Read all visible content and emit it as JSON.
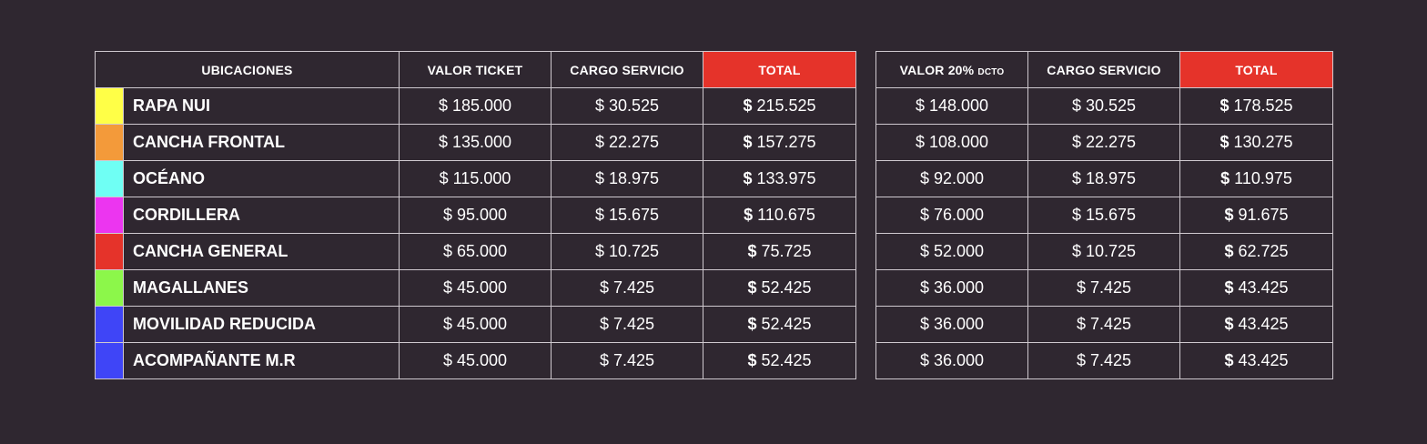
{
  "main_table": {
    "headers": {
      "ubicaciones": "UBICACIONES",
      "valor_ticket": "VALOR TICKET",
      "cargo_servicio": "CARGO SERVICIO",
      "total": "TOTAL"
    },
    "rows": [
      {
        "color": "#ffff47",
        "name": "RAPA NUI",
        "valor": "$ 185.000",
        "cargo": "$ 30.525",
        "total_symbol": "$",
        "total": "215.525"
      },
      {
        "color": "#f39a3a",
        "name": "CANCHA FRONTAL",
        "valor": "$ 135.000",
        "cargo": "$ 22.275",
        "total_symbol": "$",
        "total": "157.275"
      },
      {
        "color": "#6ffff4",
        "name": "OCÉANO",
        "valor": "$ 115.000",
        "cargo": "$ 18.975",
        "total_symbol": "$",
        "total": "133.975"
      },
      {
        "color": "#ec35f0",
        "name": "CORDILLERA",
        "valor": "$ 95.000",
        "cargo": "$ 15.675",
        "total_symbol": "$",
        "total": "110.675"
      },
      {
        "color": "#e5332a",
        "name": "CANCHA GENERAL",
        "valor": "$ 65.000",
        "cargo": "$ 10.725",
        "total_symbol": "$",
        "total": "75.725"
      },
      {
        "color": "#8cf74a",
        "name": "MAGALLANES",
        "valor": "$ 45.000",
        "cargo": "$ 7.425",
        "total_symbol": "$",
        "total": "52.425"
      },
      {
        "color": "#3f45f7",
        "name": "MOVILIDAD REDUCIDA",
        "valor": "$ 45.000",
        "cargo": "$ 7.425",
        "total_symbol": "$",
        "total": "52.425"
      },
      {
        "color": "#3f45f7",
        "name": "ACOMPAÑANTE M.R",
        "valor": "$ 45.000",
        "cargo": "$ 7.425",
        "total_symbol": "$",
        "total": "52.425"
      }
    ]
  },
  "discount_table": {
    "headers": {
      "valor_main": "VALOR 20%",
      "valor_small": "DCTO",
      "cargo_servicio": "CARGO SERVICIO",
      "total": "TOTAL"
    },
    "rows": [
      {
        "valor": "$ 148.000",
        "cargo": "$ 30.525",
        "total_symbol": "$",
        "total": "178.525"
      },
      {
        "valor": "$ 108.000",
        "cargo": "$ 22.275",
        "total_symbol": "$",
        "total": "130.275"
      },
      {
        "valor": "$ 92.000",
        "cargo": "$ 18.975",
        "total_symbol": "$",
        "total": "110.975"
      },
      {
        "valor": "$ 76.000",
        "cargo": "$ 15.675",
        "total_symbol": "$",
        "total": "91.675"
      },
      {
        "valor": "$ 52.000",
        "cargo": "$ 10.725",
        "total_symbol": "$",
        "total": "62.725"
      },
      {
        "valor": "$ 36.000",
        "cargo": "$ 7.425",
        "total_symbol": "$",
        "total": "43.425"
      },
      {
        "valor": "$ 36.000",
        "cargo": "$ 7.425",
        "total_symbol": "$",
        "total": "43.425"
      },
      {
        "valor": "$ 36.000",
        "cargo": "$ 7.425",
        "total_symbol": "$",
        "total": "43.425"
      }
    ]
  }
}
